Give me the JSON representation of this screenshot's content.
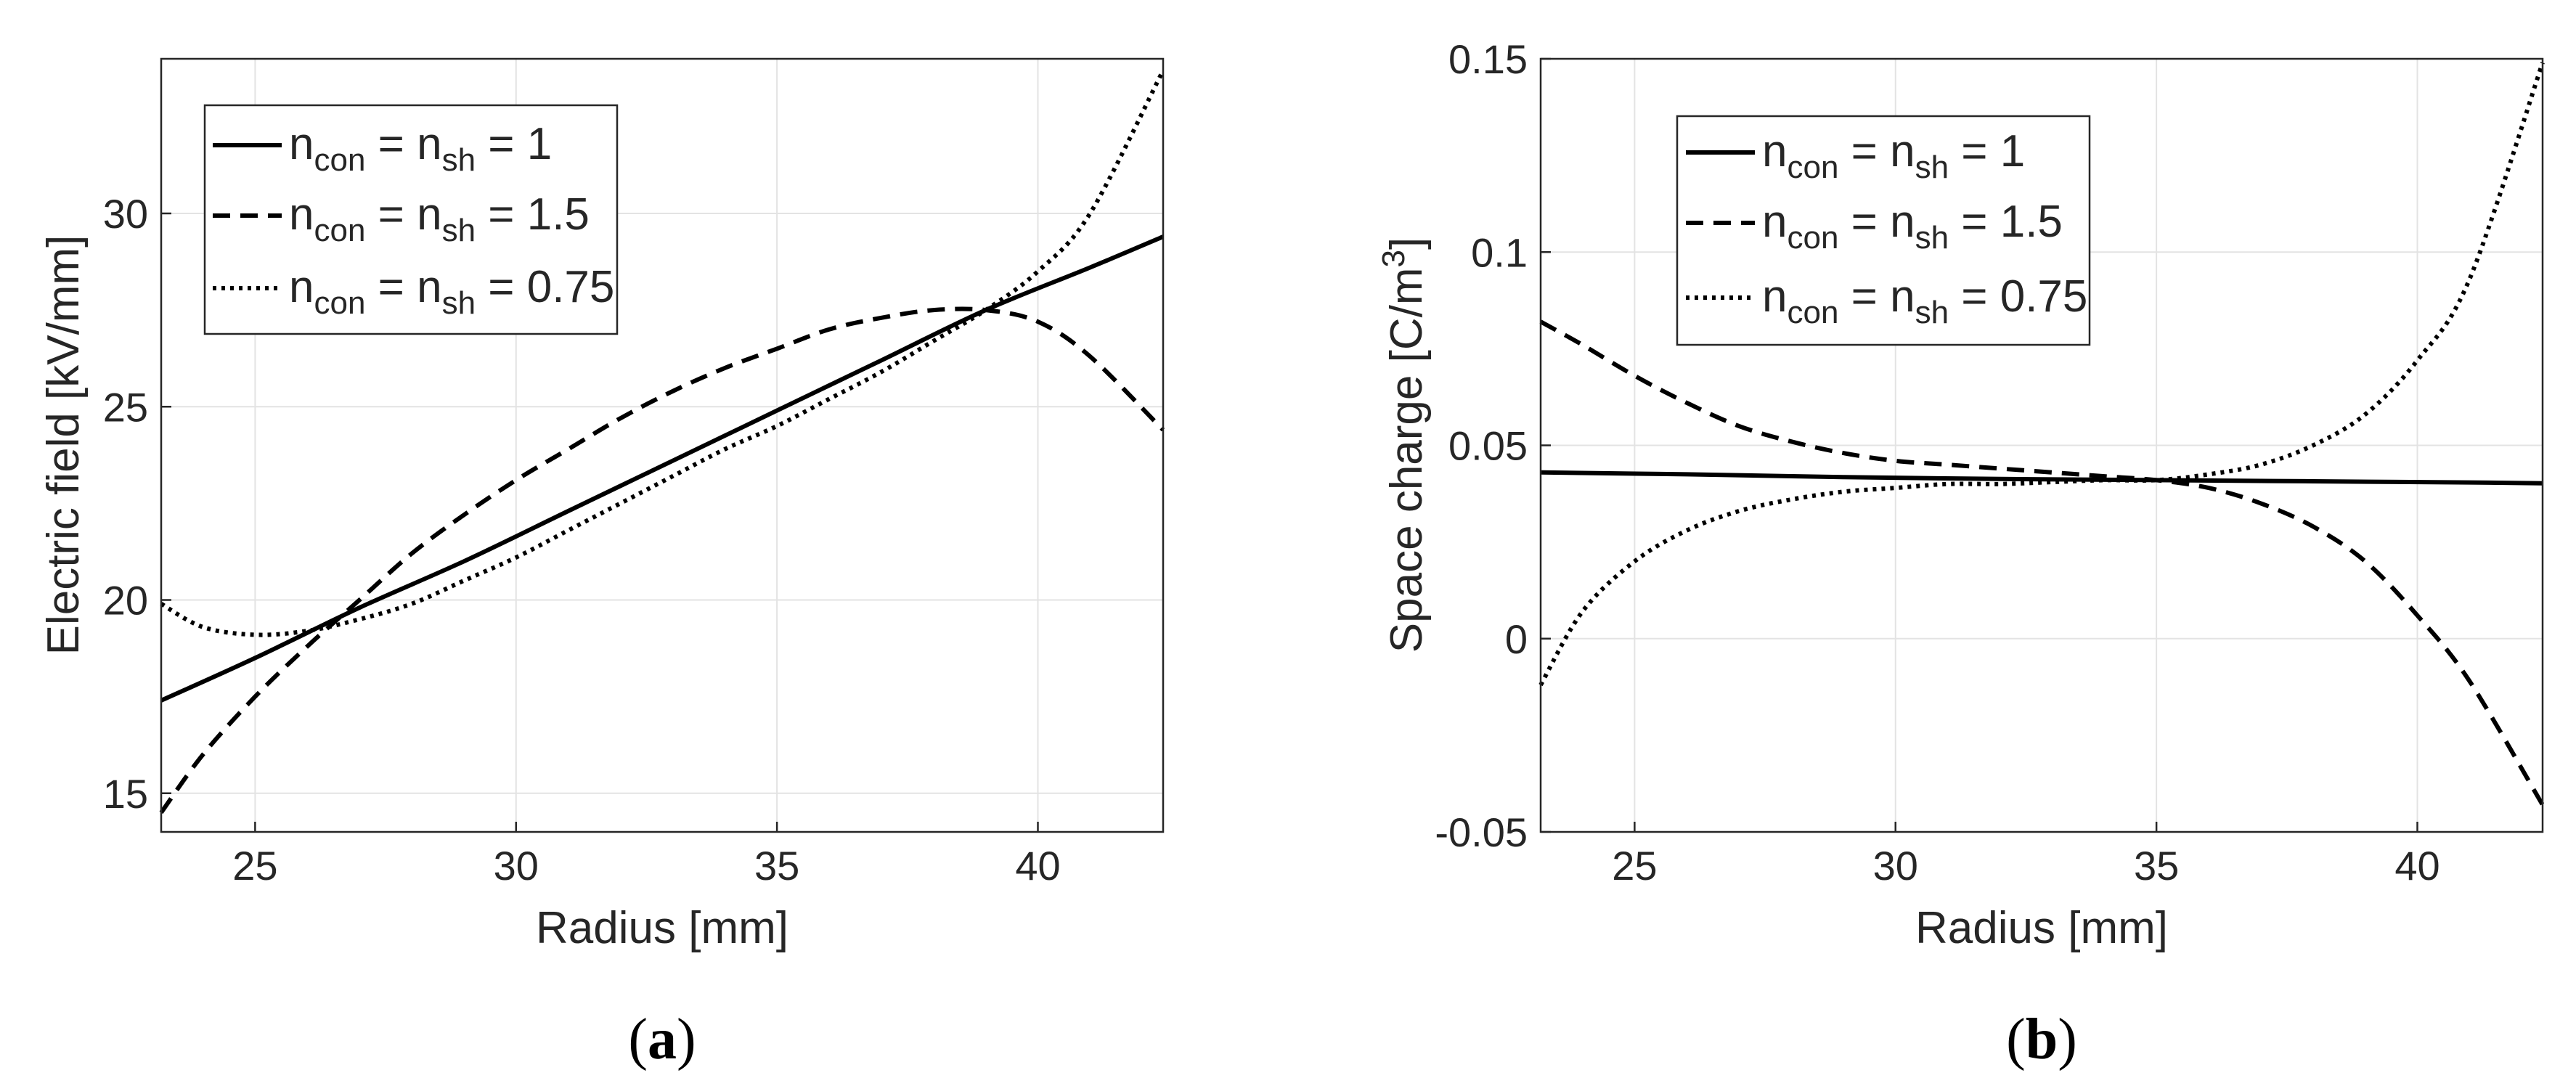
{
  "chart_data": [
    {
      "type": "line",
      "panel": "(a)",
      "panel_letter": "a",
      "xlabel": "Radius [mm]",
      "ylabel": "Electric field [kV/mm]",
      "xlim": [
        23.2,
        42.4
      ],
      "ylim": [
        14,
        34
      ],
      "xticks": [
        25,
        30,
        35,
        40
      ],
      "yticks": [
        15,
        20,
        25,
        30
      ],
      "grid": true,
      "legend_position": "top-left",
      "series": [
        {
          "name": "n_con = n_sh = 1",
          "label_main": "n",
          "label_sub1": "con",
          "label_mid": " = n",
          "label_sub2": "sh",
          "label_end": " = 1",
          "style": "solid",
          "x": [
            23.2,
            25,
            27,
            29,
            31,
            33,
            35,
            37,
            39,
            41,
            42.4
          ],
          "y": [
            17.4,
            18.5,
            19.8,
            21.0,
            22.3,
            23.6,
            24.9,
            26.2,
            27.5,
            28.6,
            29.4
          ]
        },
        {
          "name": "n_con = n_sh = 1.5",
          "label_main": "n",
          "label_sub1": "con",
          "label_mid": " = n",
          "label_sub2": "sh",
          "label_end": " = 1.5",
          "style": "dashed",
          "x": [
            23.2,
            24,
            25,
            26,
            27,
            28,
            29,
            30,
            31,
            32,
            33,
            34,
            35,
            36,
            37,
            38,
            39,
            40,
            41,
            42.4
          ],
          "y": [
            14.5,
            16.0,
            17.5,
            18.8,
            20.0,
            21.2,
            22.2,
            23.1,
            23.9,
            24.7,
            25.4,
            26.0,
            26.5,
            27.0,
            27.3,
            27.5,
            27.5,
            27.2,
            26.3,
            24.4
          ]
        },
        {
          "name": "n_con = n_sh = 0.75",
          "label_main": "n",
          "label_sub1": "con",
          "label_mid": " = n",
          "label_sub2": "sh",
          "label_end": " = 0.75",
          "style": "dotted",
          "x": [
            23.2,
            24,
            25,
            26,
            27,
            28,
            29,
            30,
            31,
            32,
            33,
            34,
            35,
            36,
            37,
            38,
            39,
            40,
            41,
            42.4
          ],
          "y": [
            19.9,
            19.3,
            19.1,
            19.2,
            19.5,
            19.9,
            20.5,
            21.1,
            21.8,
            22.5,
            23.2,
            23.9,
            24.5,
            25.2,
            25.9,
            26.7,
            27.5,
            28.5,
            30.0,
            33.7
          ]
        }
      ]
    },
    {
      "type": "line",
      "panel": "(b)",
      "panel_letter": "b",
      "xlabel": "Radius [mm]",
      "ylabel_main": "Space charge [C/m",
      "ylabel_sup": "3",
      "ylabel_end": "]",
      "xlim": [
        23.2,
        42.4
      ],
      "ylim": [
        -0.05,
        0.15
      ],
      "xticks": [
        25,
        30,
        35,
        40
      ],
      "yticks": [
        -0.05,
        0,
        0.05,
        0.1,
        0.15
      ],
      "ytick_labels": [
        "-0.05",
        "0",
        "0.05",
        "0.1",
        "0.15"
      ],
      "grid": true,
      "legend_position": "top-center",
      "series": [
        {
          "name": "n_con = n_sh = 1",
          "label_main": "n",
          "label_sub1": "con",
          "label_mid": " = n",
          "label_sub2": "sh",
          "label_end": " = 1",
          "style": "solid",
          "x": [
            23.2,
            26,
            29,
            32,
            35,
            38,
            41,
            42.4
          ],
          "y": [
            0.043,
            0.0425,
            0.0418,
            0.0413,
            0.041,
            0.0407,
            0.0404,
            0.0402
          ]
        },
        {
          "name": "n_con = n_sh = 1.5",
          "label_main": "n",
          "label_sub1": "con",
          "label_mid": " = n",
          "label_sub2": "sh",
          "label_end": " = 1.5",
          "style": "dashed",
          "x": [
            23.2,
            24,
            25,
            26,
            27,
            28,
            29,
            30,
            31,
            32,
            33,
            34,
            35,
            36,
            37,
            38,
            39,
            40,
            41,
            42.4
          ],
          "y": [
            0.082,
            0.076,
            0.068,
            0.061,
            0.055,
            0.051,
            0.048,
            0.046,
            0.045,
            0.044,
            0.043,
            0.042,
            0.041,
            0.039,
            0.035,
            0.029,
            0.02,
            0.006,
            -0.011,
            -0.043
          ]
        },
        {
          "name": "n_con = n_sh = 0.75",
          "label_main": "n",
          "label_sub1": "con",
          "label_mid": " = n",
          "label_sub2": "sh",
          "label_end": " = 0.75",
          "style": "dotted",
          "x": [
            23.2,
            24,
            25,
            26,
            27,
            28,
            29,
            30,
            31,
            32,
            33,
            34,
            35,
            36,
            37,
            38,
            39,
            40,
            41,
            42.4
          ],
          "y": [
            -0.012,
            0.007,
            0.02,
            0.028,
            0.033,
            0.036,
            0.038,
            0.039,
            0.04,
            0.04,
            0.0405,
            0.041,
            0.041,
            0.0425,
            0.045,
            0.05,
            0.058,
            0.072,
            0.093,
            0.149
          ]
        }
      ]
    }
  ]
}
